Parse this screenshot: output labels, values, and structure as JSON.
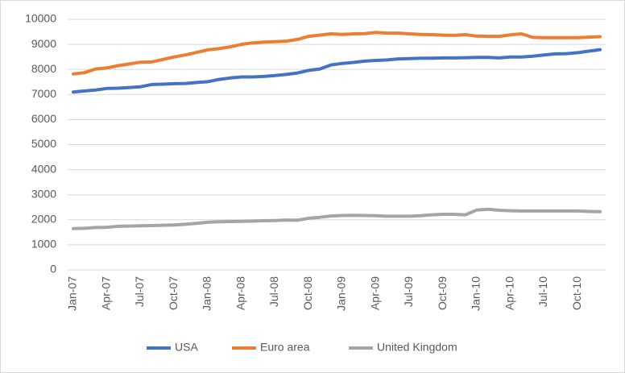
{
  "chart_data": {
    "type": "line",
    "categories": [
      "Jan-07",
      null,
      null,
      "Apr-07",
      null,
      null,
      "Jul-07",
      null,
      null,
      "Oct-07",
      null,
      null,
      "Jan-08",
      null,
      null,
      "Apr-08",
      null,
      null,
      "Jul-08",
      null,
      null,
      "Oct-08",
      null,
      null,
      "Jan-09",
      null,
      null,
      "Apr-09",
      null,
      null,
      "Jul-09",
      null,
      null,
      "Oct-09",
      null,
      null,
      "Jan-10",
      null,
      null,
      "Apr-10",
      null,
      null,
      "Jul-10",
      null,
      null,
      "Oct-10",
      null,
      null
    ],
    "series": [
      {
        "name": "USA",
        "color": "#4472c4",
        "values": [
          7100,
          7140,
          7180,
          7240,
          7250,
          7280,
          7310,
          7400,
          7410,
          7430,
          7440,
          7480,
          7510,
          7600,
          7660,
          7700,
          7700,
          7720,
          7760,
          7800,
          7860,
          7960,
          8020,
          8180,
          8240,
          8280,
          8330,
          8360,
          8380,
          8420,
          8430,
          8450,
          8450,
          8460,
          8460,
          8470,
          8480,
          8480,
          8460,
          8500,
          8500,
          8530,
          8580,
          8620,
          8630,
          8670,
          8730,
          8790
        ]
      },
      {
        "name": "Euro area",
        "color": "#ed7d31",
        "values": [
          7820,
          7870,
          8020,
          8060,
          8150,
          8220,
          8290,
          8300,
          8400,
          8500,
          8580,
          8680,
          8780,
          8830,
          8900,
          9000,
          9060,
          9090,
          9110,
          9130,
          9200,
          9320,
          9370,
          9420,
          9400,
          9420,
          9430,
          9480,
          9450,
          9450,
          9420,
          9400,
          9390,
          9370,
          9360,
          9390,
          9330,
          9320,
          9320,
          9380,
          9420,
          9280,
          9270,
          9270,
          9270,
          9270,
          9290,
          9310
        ]
      },
      {
        "name": "United Kingdom",
        "color": "#a5a5a5",
        "values": [
          1650,
          1660,
          1690,
          1700,
          1740,
          1750,
          1760,
          1770,
          1780,
          1790,
          1820,
          1860,
          1900,
          1920,
          1930,
          1940,
          1950,
          1960,
          1970,
          1990,
          1980,
          2060,
          2100,
          2150,
          2170,
          2180,
          2170,
          2160,
          2140,
          2140,
          2140,
          2160,
          2200,
          2220,
          2220,
          2200,
          2390,
          2420,
          2380,
          2360,
          2350,
          2350,
          2350,
          2350,
          2350,
          2350,
          2330,
          2320
        ]
      }
    ],
    "ylim": [
      0,
      10000
    ],
    "yticks": [
      0,
      1000,
      2000,
      3000,
      4000,
      5000,
      6000,
      7000,
      8000,
      9000,
      10000
    ],
    "grid": true,
    "legend": "bottom"
  }
}
